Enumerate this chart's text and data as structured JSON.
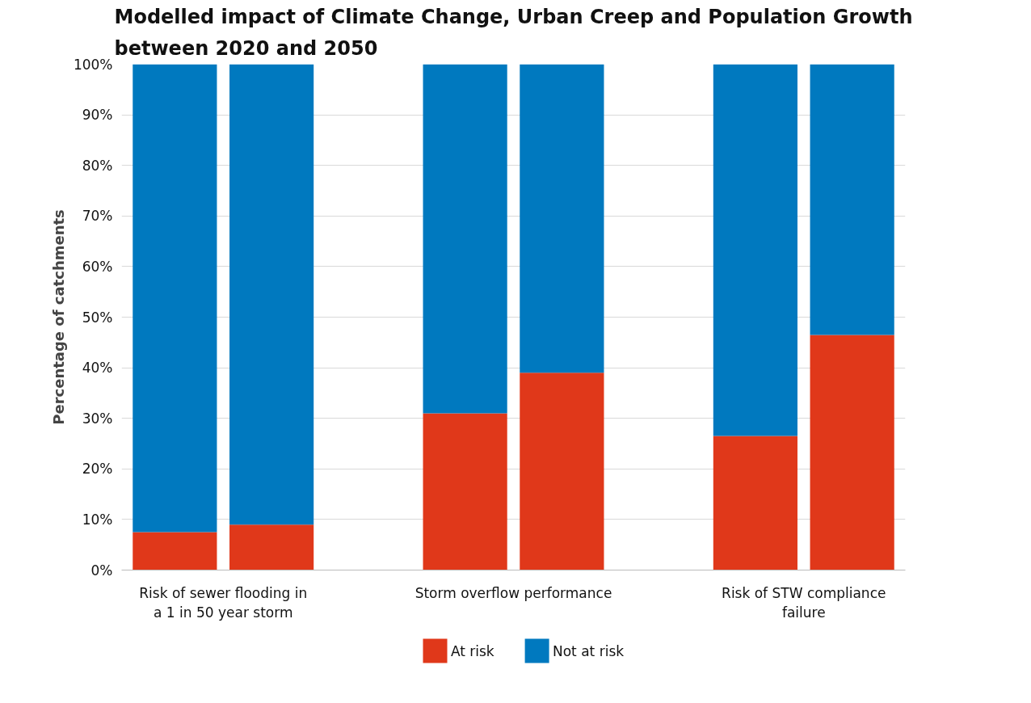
{
  "chart_data": {
    "type": "bar",
    "stacked": true,
    "title": "Modelled impact of Climate Change, Urban Creep and Population Growth between 2020 and 2050",
    "ylabel": "Percentage of catchments",
    "categories": [
      null,
      null,
      null,
      null,
      null,
      null
    ],
    "series": [
      {
        "name": "At risk",
        "color": "#e0381a",
        "values": [
          7.5,
          9,
          31,
          39,
          26.5,
          46.5
        ]
      },
      {
        "name": "Not at risk",
        "color": "#0079bf",
        "values": [
          92.5,
          91,
          69,
          61,
          73.5,
          53.5
        ]
      }
    ],
    "annotations": [
      "Risk of sewer flooding in a 1 in 50 year storm",
      "Storm overflow performance",
      "Risk of STW compliance failure"
    ],
    "ylim": [
      0,
      100
    ],
    "yticks": [
      {
        "value": 0,
        "label": "0%"
      },
      {
        "value": 10,
        "label": "10%"
      },
      {
        "value": 20,
        "label": "20%"
      },
      {
        "value": 30,
        "label": "30%"
      },
      {
        "value": 40,
        "label": "40%"
      },
      {
        "value": 50,
        "label": "50%"
      },
      {
        "value": 60,
        "label": "60%"
      },
      {
        "value": 70,
        "label": "70%"
      },
      {
        "value": 80,
        "label": "80%"
      },
      {
        "value": 90,
        "label": "90%"
      },
      {
        "value": 100,
        "label": "100%"
      }
    ],
    "grid": "y",
    "legend": "bottom"
  }
}
